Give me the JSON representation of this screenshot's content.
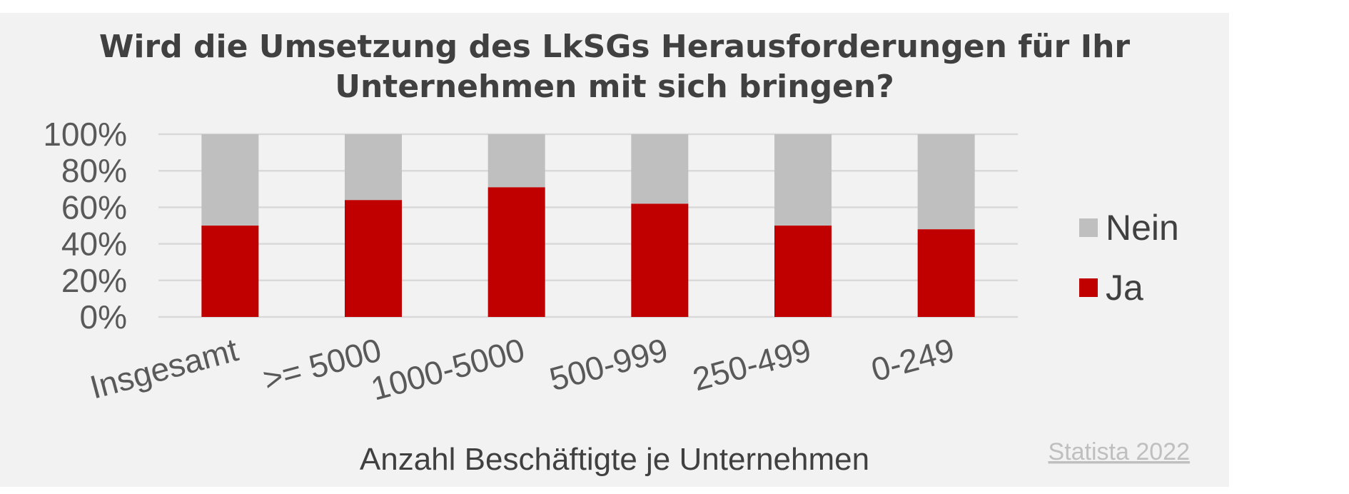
{
  "chart_data": {
    "type": "bar",
    "stacked": true,
    "title": "Wird die Umsetzung des LkSGs Herausforderungen für Ihr Unternehmen mit sich bringen?",
    "title_lines": [
      "Wird die Umsetzung des LkSGs Herausforderungen für Ihr",
      "Unternehmen mit sich bringen?"
    ],
    "xlabel": "Anzahl Beschäftigte je Unternehmen",
    "ylabel": "",
    "categories": [
      "Insgesamt",
      ">= 5000",
      "1000-5000",
      "500-999",
      "250-499",
      "0-249"
    ],
    "series": [
      {
        "name": "Ja",
        "color": "#c00000",
        "values": [
          50,
          64,
          71,
          62,
          50,
          48
        ]
      },
      {
        "name": "Nein",
        "color": "#bfbfbf",
        "values": [
          50,
          36,
          29,
          38,
          50,
          52
        ]
      }
    ],
    "ylim": [
      0,
      100
    ],
    "yticks": [
      "0%",
      "20%",
      "40%",
      "60%",
      "80%",
      "100%"
    ],
    "grid": true,
    "legend": "right",
    "source": "Statista 2022"
  }
}
